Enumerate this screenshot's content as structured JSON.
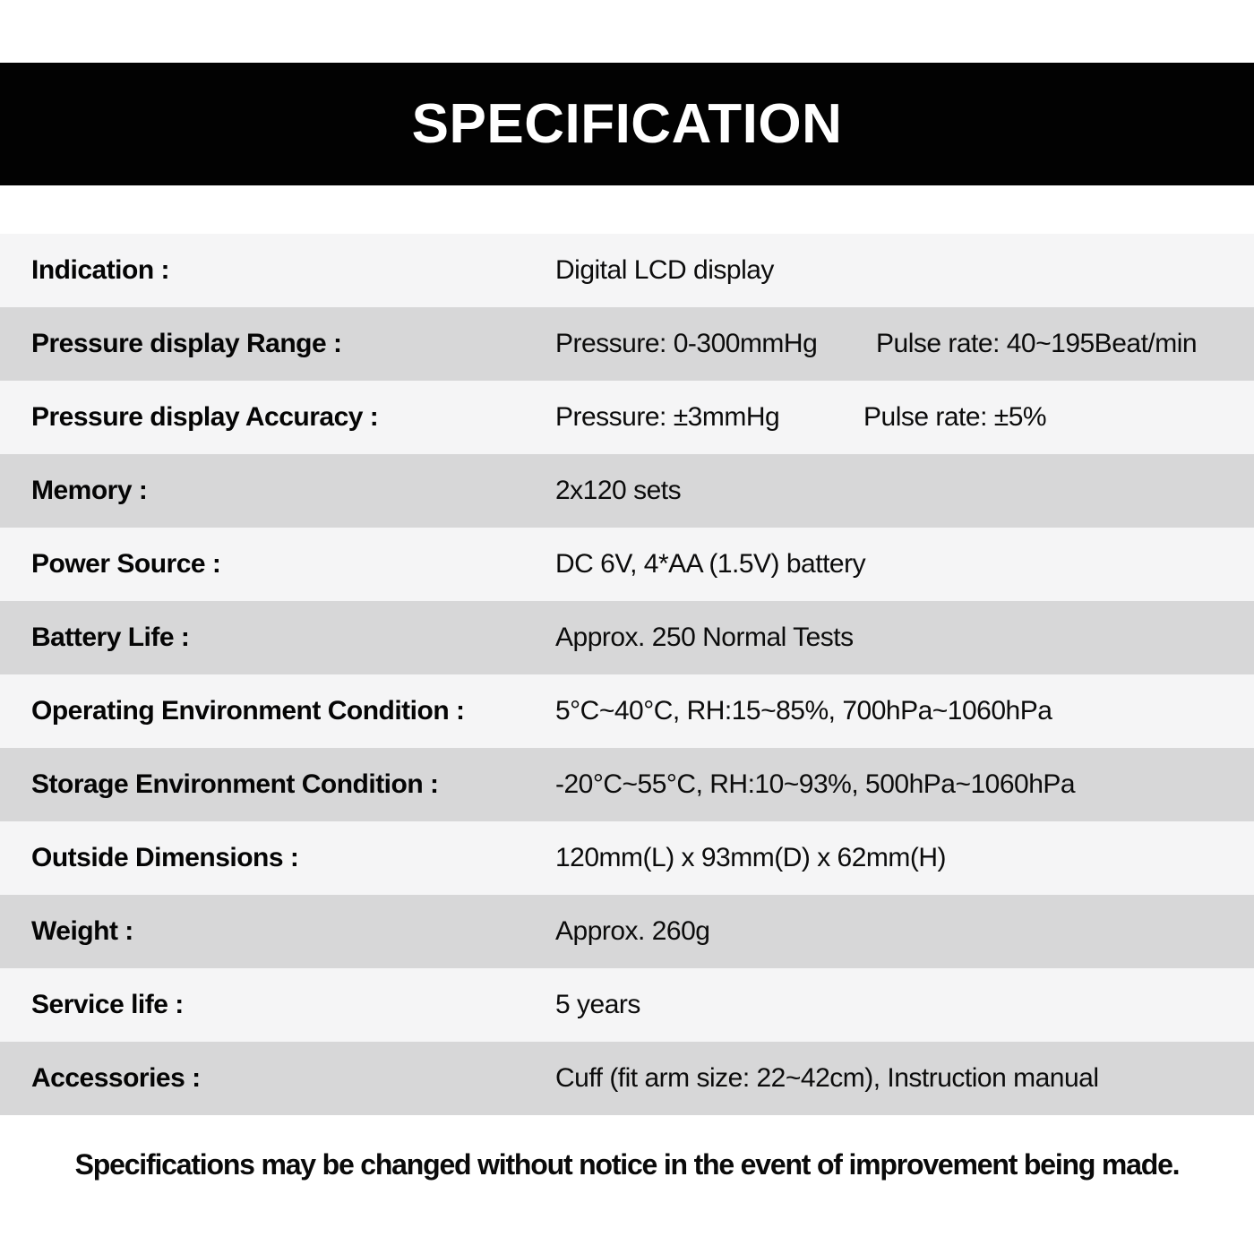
{
  "header": {
    "title": "SPECIFICATION",
    "bar_color": "#020202",
    "title_color": "#ffffff"
  },
  "table": {
    "row_colors": {
      "light": "#f5f5f6",
      "dark": "#d7d7d8"
    },
    "rows": [
      {
        "label": "Indication :",
        "value": "Digital LCD display"
      },
      {
        "label": "Pressure display Range :",
        "value": "Pressure: 0-300mmHg",
        "value2": "Pulse rate: 40~195Beat/min"
      },
      {
        "label": "Pressure display Accuracy :",
        "value": "Pressure: ±3mmHg",
        "value2": "Pulse rate: ±5%"
      },
      {
        "label": "Memory :",
        "value": "2x120 sets"
      },
      {
        "label": "Power Source :",
        "value": "DC 6V, 4*AA (1.5V) battery"
      },
      {
        "label": "Battery Life :",
        "value": "Approx. 250 Normal Tests"
      },
      {
        "label": "Operating Environment Condition :",
        "value": "5°C~40°C, RH:15~85%, 700hPa~1060hPa"
      },
      {
        "label": "Storage Environment Condition :",
        "value": "-20°C~55°C, RH:10~93%, 500hPa~1060hPa"
      },
      {
        "label": "Outside Dimensions :",
        "value": "120mm(L) x 93mm(D) x 62mm(H)"
      },
      {
        "label": "Weight :",
        "value": "Approx. 260g"
      },
      {
        "label": "Service life :",
        "value": "5 years"
      },
      {
        "label": "Accessories :",
        "value": "Cuff (fit arm size: 22~42cm), Instruction manual"
      }
    ]
  },
  "footer": {
    "note": "Specifications may be changed without notice in the event of improvement being made."
  }
}
